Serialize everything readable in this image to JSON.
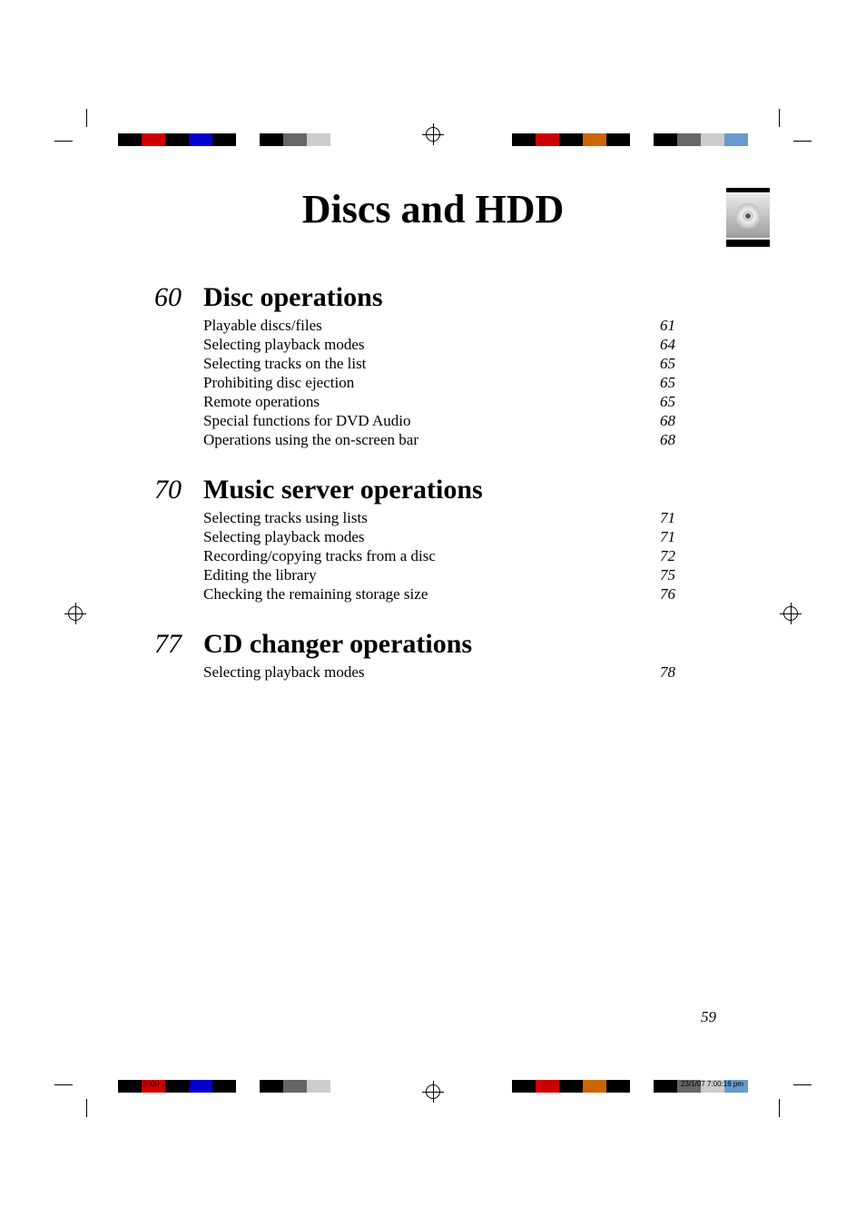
{
  "title": "Discs and HDD",
  "page_number": "59",
  "footer": {
    "left": "KDNX5000_J.indb   59",
    "right": "23/1/07   7:00:16 pm"
  },
  "sections": [
    {
      "page": "60",
      "title": "Disc operations",
      "items": [
        {
          "label": "Playable discs/files",
          "page": "61"
        },
        {
          "label": "Selecting playback modes",
          "page": "64"
        },
        {
          "label": "Selecting tracks on the list",
          "page": "65"
        },
        {
          "label": "Prohibiting disc ejection",
          "page": "65"
        },
        {
          "label": "Remote operations",
          "page": "65"
        },
        {
          "label": "Special functions for DVD Audio",
          "page": "68"
        },
        {
          "label": "Operations using the on-screen bar",
          "page": "68"
        }
      ]
    },
    {
      "page": "70",
      "title": "Music server operations",
      "items": [
        {
          "label": "Selecting tracks using lists",
          "page": "71"
        },
        {
          "label": "Selecting playback modes",
          "page": "71"
        },
        {
          "label": "Recording/copying tracks from a disc",
          "page": "72"
        },
        {
          "label": "Editing the library",
          "page": "75"
        },
        {
          "label": "Checking the remaining storage size",
          "page": "76"
        }
      ]
    },
    {
      "page": "77",
      "title": "CD changer operations",
      "items": [
        {
          "label": "Selecting playback modes",
          "page": "78"
        }
      ]
    }
  ],
  "colors": {
    "color_bar_swatches": [
      "#000000",
      "#cc0000",
      "#000000",
      "#0000cc",
      "#000000",
      "#ffffff",
      "#000000",
      "#666666",
      "#cccccc",
      "#ffffff"
    ],
    "color_bar_swatches_rev": [
      "#6699cc",
      "#cccccc",
      "#666666",
      "#000000",
      "#ffffff",
      "#000000",
      "#cc6600",
      "#000000",
      "#cc0000",
      "#000000"
    ],
    "background": "#ffffff",
    "text": "#000000"
  }
}
